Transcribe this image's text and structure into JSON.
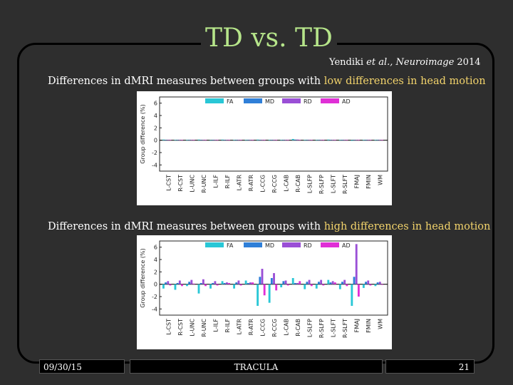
{
  "slide": {
    "title": "TD vs. TD",
    "citation_authors": "Yendiki ",
    "citation_etal": "et al., Neuroimage",
    "citation_year": " 2014",
    "caption_low_prefix": "Differences in dMRI measures between groups with ",
    "caption_low_highlight": "low differences in head motion",
    "caption_high_prefix": "Differences in dMRI measures between groups with ",
    "caption_high_highlight": "high differences in head motion",
    "footer_date": "09/30/15",
    "footer_center": "TRACULA",
    "footer_page": "21"
  },
  "colors": {
    "title": "#b6e58a",
    "highlight": "#f2d36b",
    "FA": "#29c7d6",
    "MD": "#2f7fd8",
    "RD": "#9a4fd6",
    "AD": "#e02fd6"
  },
  "chart_data": [
    {
      "type": "bar",
      "ylabel": "Group difference (%)",
      "ylim": [
        -5,
        7
      ],
      "yticks": [
        -4,
        -2,
        0,
        2,
        4,
        6
      ],
      "grid": false,
      "legend": "top",
      "categories": [
        "L-CST",
        "R-CST",
        "L-UNC",
        "R-UNC",
        "L-ILF",
        "R-ILF",
        "L-ATR",
        "R-ATR",
        "L-CCG",
        "R-CCG",
        "L-CAB",
        "R-CAB",
        "L-SLFP",
        "R-SLFP",
        "L-SLFT",
        "R-SLFT",
        "FMAJ",
        "FMIN",
        "WM"
      ],
      "series": [
        {
          "name": "FA",
          "values": [
            0.1,
            0.05,
            0.05,
            0.1,
            -0.05,
            0.1,
            0.05,
            0.05,
            0.1,
            0.05,
            0.05,
            0.2,
            0.05,
            0.05,
            0.1,
            0.05,
            -0.1,
            0.05,
            0.05
          ]
        },
        {
          "name": "MD",
          "values": [
            0.05,
            0.05,
            0.05,
            0.05,
            0.05,
            0.05,
            0.05,
            0.05,
            0.05,
            0.05,
            0.05,
            0.1,
            0.05,
            0.05,
            0.05,
            0.05,
            0.05,
            0.05,
            0.05
          ]
        },
        {
          "name": "RD",
          "values": [
            0.05,
            0.05,
            0.05,
            0.05,
            0.05,
            0.05,
            0.05,
            0.05,
            0.05,
            0.05,
            0.05,
            0.1,
            0.05,
            0.05,
            0.05,
            0.05,
            0.05,
            0.05,
            0.05
          ]
        },
        {
          "name": "AD",
          "values": [
            0.05,
            0.05,
            0.05,
            0.05,
            0.05,
            0.05,
            0.05,
            0.05,
            0.05,
            0.05,
            0.05,
            0.05,
            0.05,
            0.05,
            0.05,
            0.05,
            0.05,
            0.05,
            0.05
          ]
        }
      ]
    },
    {
      "type": "bar",
      "ylabel": "Group difference (%)",
      "ylim": [
        -5,
        7
      ],
      "yticks": [
        -4,
        -2,
        0,
        2,
        4,
        6
      ],
      "grid": false,
      "legend": "top",
      "categories": [
        "L-CST",
        "R-CST",
        "L-UNC",
        "R-UNC",
        "L-ILF",
        "R-ILF",
        "L-ATR",
        "R-ATR",
        "L-CCG",
        "R-CCG",
        "L-CAB",
        "R-CAB",
        "L-SLFP",
        "R-SLFP",
        "L-SLFT",
        "R-SLFT",
        "FMAJ",
        "FMIN",
        "WM"
      ],
      "series": [
        {
          "name": "FA",
          "values": [
            -0.7,
            -0.9,
            -0.3,
            -1.5,
            -0.7,
            0.5,
            -0.7,
            0.6,
            -3.5,
            -3.0,
            -0.5,
            1.0,
            -0.8,
            -0.7,
            0.7,
            -0.8,
            -3.5,
            -0.6,
            -0.3
          ]
        },
        {
          "name": "MD",
          "values": [
            0.3,
            0.2,
            0.4,
            0.2,
            0.2,
            0.2,
            0.3,
            0.2,
            1.2,
            1.0,
            0.5,
            0.2,
            0.4,
            0.4,
            0.3,
            0.4,
            1.2,
            0.4,
            0.3
          ]
        },
        {
          "name": "RD",
          "values": [
            0.5,
            0.6,
            0.7,
            0.8,
            0.5,
            0.3,
            0.6,
            0.3,
            2.5,
            1.8,
            0.6,
            0.2,
            0.7,
            0.7,
            0.5,
            0.7,
            6.5,
            0.6,
            0.4
          ]
        },
        {
          "name": "AD",
          "values": [
            -0.2,
            -0.3,
            0.1,
            -0.3,
            -0.2,
            0.2,
            -0.2,
            0.3,
            -1.8,
            -1.0,
            -0.2,
            0.5,
            -0.3,
            -0.2,
            0.3,
            -0.3,
            -2.0,
            -0.2,
            -0.1
          ]
        }
      ]
    }
  ]
}
